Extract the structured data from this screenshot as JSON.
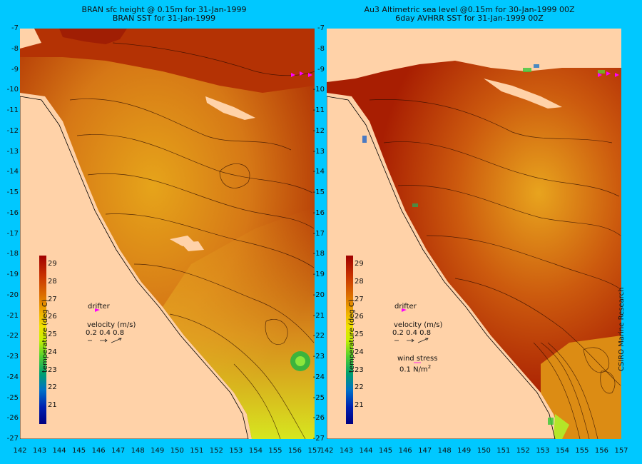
{
  "left_panel": {
    "title_line1": "BRAN sfc height @ 0.15m for 31-Jan-1999",
    "title_line2": "BRAN SST for 31-Jan-1999"
  },
  "right_panel": {
    "title_line1": "Au3 Altimetric sea level  @0.15m  for 30-Jan-1999 00Z",
    "title_line2": "6day AVHRR SST for 31-Jan-1999 00Z"
  },
  "lat_ticks": [
    "-7",
    "-8",
    "-9",
    "-10",
    "-11",
    "-12",
    "-13",
    "-14",
    "-15",
    "-16",
    "-17",
    "-18",
    "-19",
    "-20",
    "-21",
    "-22",
    "-23",
    "-24",
    "-25",
    "-26",
    "-27"
  ],
  "lon_ticks": [
    "142",
    "143",
    "144",
    "145",
    "146",
    "147",
    "148",
    "149",
    "150",
    "151",
    "152",
    "153",
    "154",
    "155",
    "156",
    "157"
  ],
  "colorbar": {
    "label": "temperature (deg C)",
    "ticks": [
      "29",
      "28",
      "27",
      "26",
      "25",
      "24",
      "23",
      "22",
      "21"
    ],
    "range": [
      20.5,
      29.5
    ],
    "colors": [
      "#a00000",
      "#c83200",
      "#dc6e00",
      "#e69600",
      "#f0b400",
      "#f5d200",
      "#e6ee00",
      "#8ce600",
      "#32c832",
      "#009664",
      "#0064c8",
      "#0000a0"
    ]
  },
  "legend": {
    "drifter_label": "drifter",
    "velocity_label": "velocity (m/s)",
    "velocity_scale": "0.2 0.4 0.8",
    "wind_label": "wind stress",
    "wind_value": "0.1 N/m",
    "wind_unit_sup": "2"
  },
  "credit": "CSIRO Marine Research",
  "colors": {
    "ocean_background": "#00c8ff",
    "land": "#ffd2a8",
    "drifter": "#ff00ff"
  }
}
